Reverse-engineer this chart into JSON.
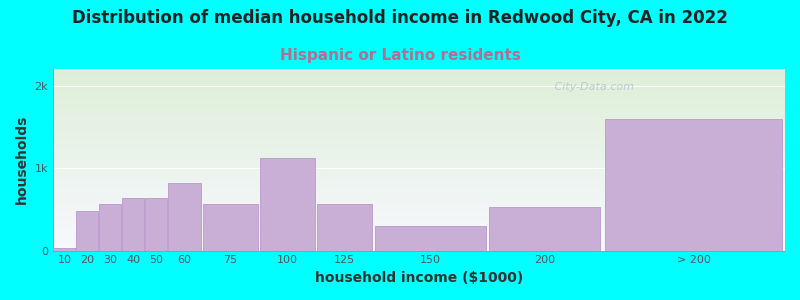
{
  "title": "Distribution of median household income in Redwood City, CA in 2022",
  "subtitle": "Hispanic or Latino residents",
  "xlabel": "household income ($1000)",
  "ylabel": "households",
  "background_color": "#00FFFF",
  "plot_bg_top": "#deefd8",
  "plot_bg_bottom": "#f8f8ff",
  "bar_color": "#c9aed6",
  "bar_edge_color": "#b898cc",
  "values": [
    30,
    480,
    560,
    640,
    640,
    820,
    560,
    1120,
    570,
    300,
    530,
    1600
  ],
  "bar_widths": [
    10,
    10,
    10,
    10,
    10,
    15,
    25,
    25,
    25,
    50,
    50,
    80
  ],
  "bar_lefts": [
    10,
    20,
    30,
    40,
    50,
    60,
    75,
    100,
    125,
    150,
    200,
    250
  ],
  "tick_labels": [
    "10",
    "20",
    "30",
    "40",
    "50",
    "60",
    "75",
    "100",
    "125",
    "150",
    "200",
    "> 200"
  ],
  "ytick_positions": [
    0,
    1000,
    2000
  ],
  "ytick_labels": [
    "0",
    "1k",
    "2k"
  ],
  "ylim": [
    0,
    2200
  ],
  "xlim": [
    10,
    330
  ],
  "watermark": " City-Data.com",
  "title_fontsize": 12,
  "subtitle_fontsize": 11,
  "subtitle_color": "#b07090",
  "axis_label_fontsize": 10,
  "tick_fontsize": 8,
  "watermark_color": "#aabbcc",
  "watermark_alpha": 0.7
}
